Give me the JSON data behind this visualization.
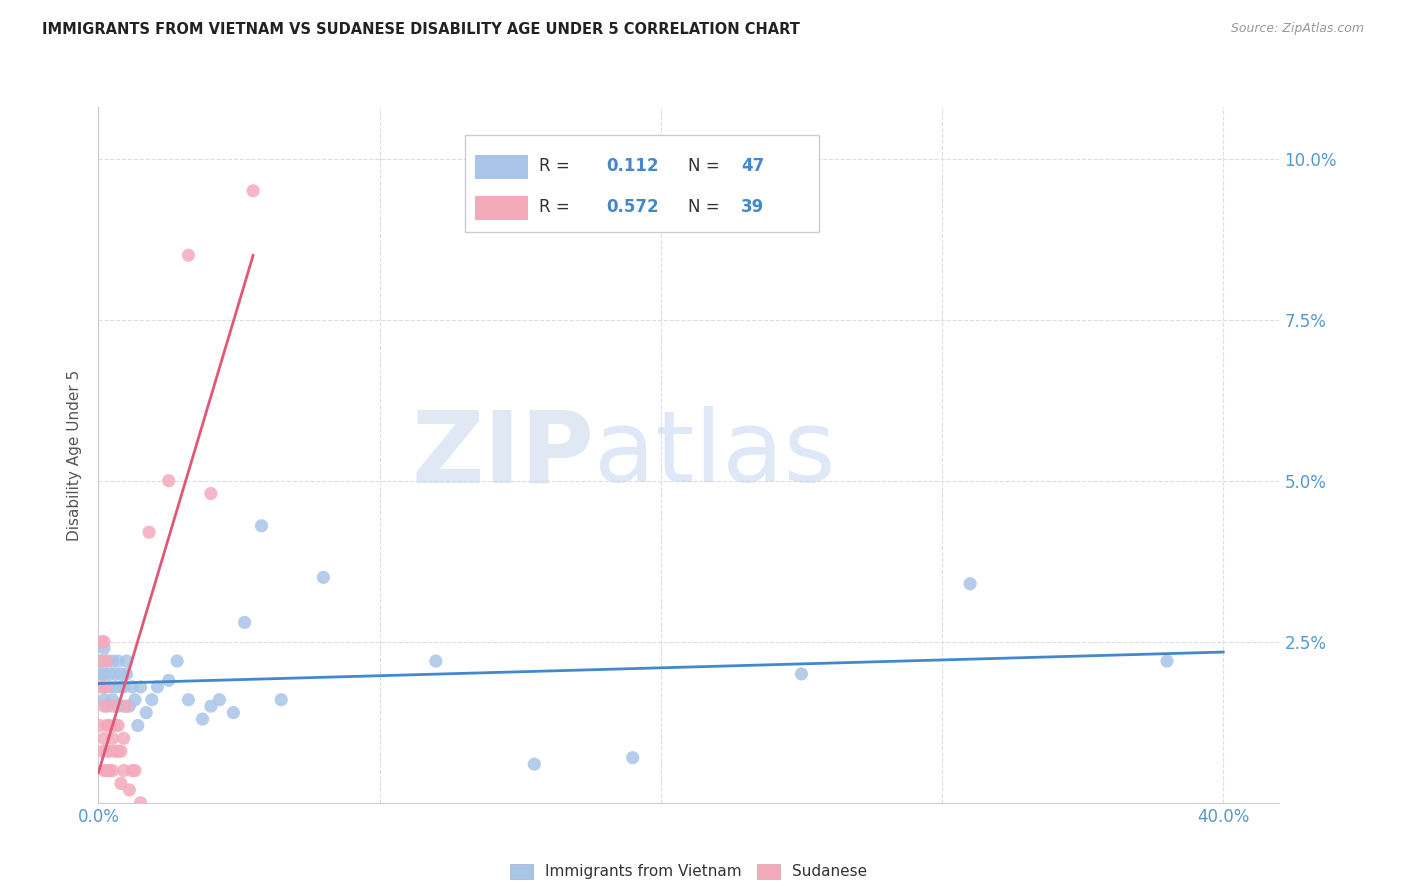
{
  "title": "IMMIGRANTS FROM VIETNAM VS SUDANESE DISABILITY AGE UNDER 5 CORRELATION CHART",
  "source": "Source: ZipAtlas.com",
  "ylabel": "Disability Age Under 5",
  "color_vietnam": "#a8c4e8",
  "color_sudanese": "#f4aabb",
  "line_color_vietnam": "#4488cc",
  "line_color_sudanese": "#e05878",
  "xlim": [
    0.0,
    0.42
  ],
  "ylim": [
    0.0,
    0.108
  ],
  "yticks": [
    0.0,
    0.025,
    0.05,
    0.075,
    0.1
  ],
  "ytick_labels": [
    "",
    "2.5%",
    "5.0%",
    "7.5%",
    "10.0%"
  ],
  "xticks": [
    0.0,
    0.1,
    0.2,
    0.3,
    0.4
  ],
  "xtick_labels": [
    "0.0%",
    "",
    "",
    "",
    "40.0%"
  ],
  "r_vietnam": "0.112",
  "n_vietnam": "47",
  "r_sudanese": "0.572",
  "n_sudanese": "39",
  "vietnam_x": [
    0.001,
    0.001,
    0.002,
    0.002,
    0.002,
    0.003,
    0.003,
    0.004,
    0.004,
    0.005,
    0.005,
    0.006,
    0.006,
    0.007,
    0.007,
    0.008,
    0.008,
    0.009,
    0.009,
    0.01,
    0.01,
    0.011,
    0.012,
    0.013,
    0.014,
    0.015,
    0.017,
    0.019,
    0.021,
    0.025,
    0.028,
    0.032,
    0.037,
    0.04,
    0.043,
    0.048,
    0.052,
    0.058,
    0.065,
    0.08,
    0.12,
    0.155,
    0.19,
    0.25,
    0.31,
    0.38,
    0.002
  ],
  "vietnam_y": [
    0.02,
    0.022,
    0.016,
    0.02,
    0.018,
    0.022,
    0.015,
    0.018,
    0.02,
    0.016,
    0.022,
    0.018,
    0.02,
    0.022,
    0.015,
    0.018,
    0.02,
    0.015,
    0.018,
    0.02,
    0.022,
    0.015,
    0.018,
    0.016,
    0.012,
    0.018,
    0.014,
    0.016,
    0.018,
    0.019,
    0.022,
    0.016,
    0.013,
    0.015,
    0.016,
    0.014,
    0.028,
    0.043,
    0.016,
    0.035,
    0.022,
    0.006,
    0.007,
    0.02,
    0.034,
    0.022,
    0.024
  ],
  "sudanese_x": [
    0.0005,
    0.001,
    0.001,
    0.001,
    0.0015,
    0.002,
    0.002,
    0.002,
    0.002,
    0.003,
    0.003,
    0.003,
    0.003,
    0.003,
    0.004,
    0.004,
    0.004,
    0.005,
    0.005,
    0.005,
    0.006,
    0.006,
    0.007,
    0.007,
    0.008,
    0.008,
    0.009,
    0.009,
    0.01,
    0.011,
    0.012,
    0.013,
    0.015,
    0.018,
    0.025,
    0.032,
    0.04,
    0.055,
    0.002
  ],
  "sudanese_y": [
    0.012,
    0.018,
    0.022,
    0.025,
    0.008,
    0.005,
    0.01,
    0.015,
    0.018,
    0.005,
    0.008,
    0.012,
    0.018,
    0.022,
    0.005,
    0.008,
    0.012,
    0.005,
    0.01,
    0.015,
    0.008,
    0.012,
    0.008,
    0.012,
    0.003,
    0.008,
    0.005,
    0.01,
    0.015,
    0.002,
    0.005,
    0.005,
    0.0,
    0.042,
    0.05,
    0.085,
    0.048,
    0.095,
    0.025
  ]
}
